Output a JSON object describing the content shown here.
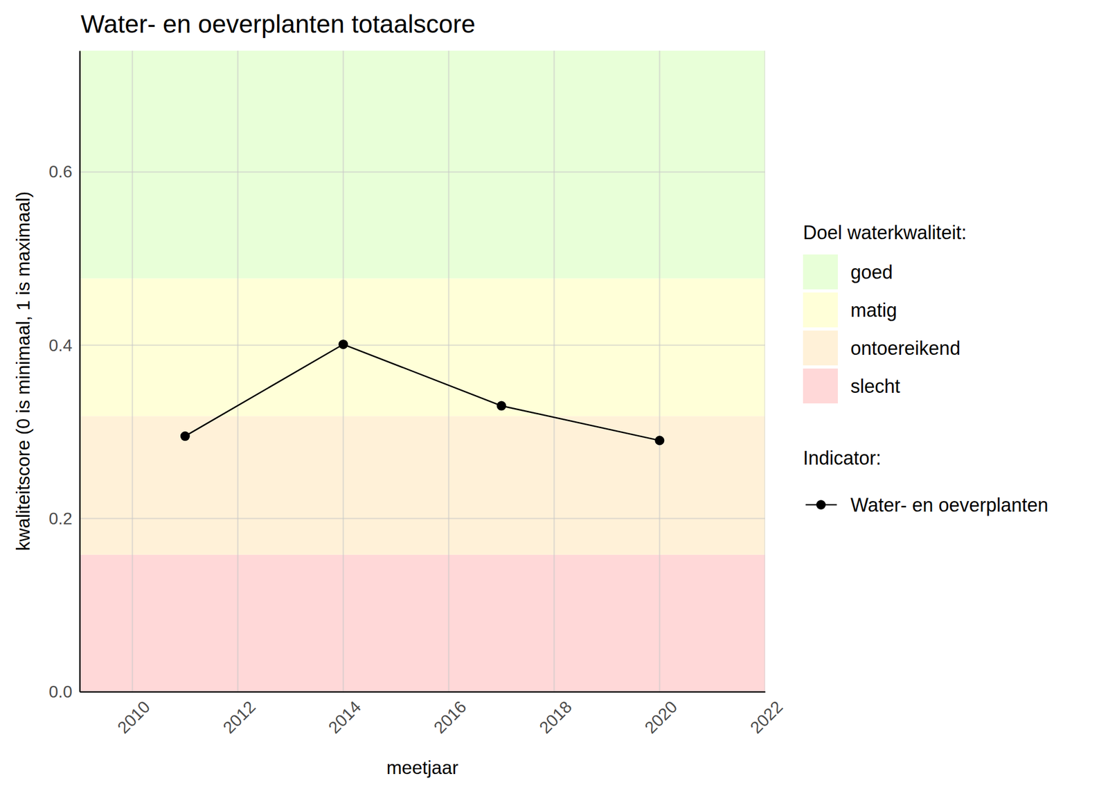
{
  "chart_data": {
    "type": "line",
    "title": "Water- en oeverplanten totaalscore",
    "x_label": "meetjaar",
    "y_label": "kwaliteitscore (0 is minimaal, 1 is maximaal)",
    "x": [
      2011,
      2014,
      2017,
      2020
    ],
    "series": [
      {
        "name": "Water- en oeverplanten",
        "color": "#000000",
        "values": [
          0.295,
          0.401,
          0.33,
          0.29
        ],
        "marker": "circle",
        "line_style": "solid"
      }
    ],
    "xlim": [
      2009,
      2022
    ],
    "xticks": [
      2010,
      2012,
      2014,
      2016,
      2018,
      2020,
      2022
    ],
    "ylim": [
      0,
      0.74
    ],
    "yticks": [
      {
        "value": 0,
        "label": "0.0"
      },
      0.2,
      0.4,
      0.6
    ],
    "grid": true,
    "legend": "right",
    "bands_title": "Doel waterkwaliteit:",
    "bands": [
      {
        "name": "goed",
        "color": "#e8ffd8",
        "from": 0.477,
        "to": 0.74
      },
      {
        "name": "matig",
        "color": "#ffffd8",
        "from": 0.318,
        "to": 0.477
      },
      {
        "name": "ontoereikend",
        "color": "#fff1d8",
        "from": 0.158,
        "to": 0.318
      },
      {
        "name": "slecht",
        "color": "#ffd8d8",
        "from": 0,
        "to": 0.158
      }
    ],
    "series_legend_title": "Indicator:"
  }
}
